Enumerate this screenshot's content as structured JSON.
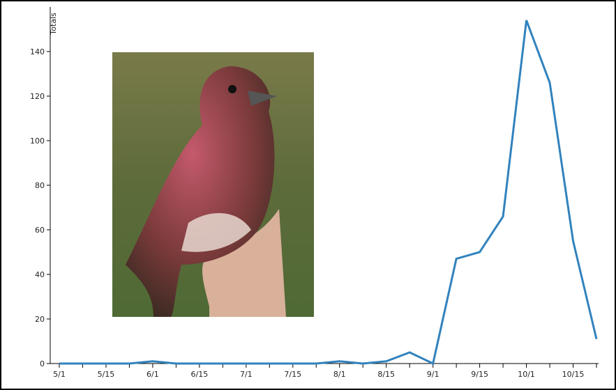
{
  "chart_data": {
    "type": "line",
    "y_label": "Totals",
    "categories": [
      "5/1",
      null,
      "5/15",
      null,
      "6/1",
      null,
      "6/15",
      null,
      "7/1",
      null,
      "7/15",
      null,
      "8/1",
      null,
      "8/15",
      null,
      "9/1",
      null,
      "9/15",
      null,
      "10/1",
      null,
      "10/15",
      null
    ],
    "series": [
      {
        "name": "Totals",
        "color": "#3182bd",
        "values": [
          0,
          0,
          0,
          0,
          1,
          0,
          0,
          0,
          0,
          0,
          0,
          0,
          1,
          0,
          1,
          5,
          0,
          47,
          50,
          66,
          154,
          126,
          55,
          11
        ]
      }
    ],
    "ylim": [
      0,
      160
    ],
    "yticks": [
      0,
      20,
      40,
      60,
      80,
      100,
      120,
      140
    ]
  }
}
